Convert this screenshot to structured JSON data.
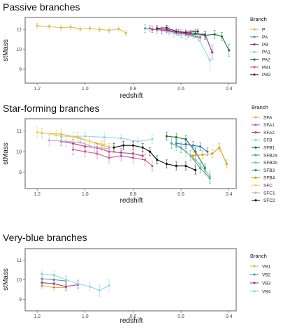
{
  "chart_data": [
    {
      "type": "line",
      "title": "Passive branches",
      "xlabel": "redshift",
      "ylabel": "stMass",
      "x_reversed": true,
      "xlim": [
        1.25,
        0.37
      ],
      "ylim": [
        8.3,
        11.6
      ],
      "xticks": [
        "1.2",
        "1.0",
        "0.8",
        "0.6",
        "0.4"
      ],
      "yticks": [
        "9",
        "10",
        "11"
      ],
      "legend_title": "Branch",
      "legend_position": "right",
      "grid": false,
      "series": [
        {
          "name": "P",
          "color": "#E3B94A",
          "points": [
            [
              1.2,
              11.18
            ],
            [
              1.15,
              11.15
            ],
            [
              1.1,
              11.08
            ],
            [
              1.06,
              11.12
            ],
            [
              1.02,
              11.02
            ],
            [
              0.98,
              11.05
            ],
            [
              0.94,
              11.0
            ],
            [
              0.9,
              10.95
            ],
            [
              0.86,
              11.02
            ],
            [
              0.83,
              10.82
            ]
          ],
          "err": [
            0.12,
            0.12,
            0.12,
            0.12,
            0.12,
            0.12,
            0.12,
            0.12,
            0.12,
            0.12
          ]
        },
        {
          "name": "PA",
          "color": "#4BA597",
          "points": [
            [
              0.75,
              11.05
            ],
            [
              0.7,
              11.0
            ],
            [
              0.65,
              10.95
            ],
            [
              0.6,
              10.8
            ],
            [
              0.55,
              10.75
            ],
            [
              0.5,
              10.7
            ]
          ],
          "err": [
            0.2,
            0.2,
            0.2,
            0.2,
            0.2,
            0.2
          ]
        },
        {
          "name": "PB",
          "color": "#7D3D8F",
          "points": [
            [
              0.72,
              11.0
            ],
            [
              0.66,
              10.98
            ],
            [
              0.61,
              10.85
            ],
            [
              0.56,
              10.8
            ],
            [
              0.5,
              10.75
            ],
            [
              0.47,
              9.85
            ]
          ],
          "err": [
            0.15,
            0.15,
            0.15,
            0.15,
            0.15,
            0.35
          ]
        },
        {
          "name": "PA1",
          "color": "#8FD4E8",
          "points": [
            [
              0.68,
              10.95
            ],
            [
              0.63,
              10.8
            ],
            [
              0.58,
              10.7
            ],
            [
              0.53,
              10.6
            ],
            [
              0.48,
              9.45
            ]
          ],
          "err": [
            0.2,
            0.2,
            0.2,
            0.2,
            0.55
          ]
        },
        {
          "name": "PA2",
          "color": "#1B7436",
          "points": [
            [
              0.54,
              10.8
            ],
            [
              0.5,
              10.7
            ],
            [
              0.46,
              10.75
            ],
            [
              0.43,
              10.65
            ],
            [
              0.4,
              9.95
            ]
          ],
          "err": [
            0.2,
            0.2,
            0.2,
            0.2,
            0.3
          ]
        },
        {
          "name": "PB1",
          "color": "#C85D9B",
          "points": [
            [
              0.73,
              11.05
            ],
            [
              0.68,
              10.95
            ],
            [
              0.62,
              10.85
            ],
            [
              0.57,
              10.75
            ],
            [
              0.52,
              10.6
            ]
          ],
          "err": [
            0.15,
            0.15,
            0.15,
            0.15,
            0.15
          ]
        },
        {
          "name": "PB2",
          "color": "#6D1F3E",
          "points": [
            [
              0.7,
              11.05
            ],
            [
              0.66,
              11.08
            ],
            [
              0.62,
              10.9
            ],
            [
              0.58,
              10.85
            ],
            [
              0.53,
              10.9
            ]
          ],
          "err": [
            0.12,
            0.12,
            0.12,
            0.12,
            0.12
          ]
        }
      ]
    },
    {
      "type": "line",
      "title": "Star-forming branches",
      "xlabel": "redshift",
      "ylabel": "stMass",
      "x_reversed": true,
      "xlim": [
        1.25,
        0.37
      ],
      "ylim": [
        8.2,
        11.6
      ],
      "xticks": [
        "1.2",
        "1.0",
        "0.8",
        "0.6",
        "0.4"
      ],
      "yticks": [
        "9",
        "10",
        "11"
      ],
      "legend_title": "Branch",
      "legend_position": "right",
      "grid": false,
      "series": [
        {
          "name": "SFA",
          "color": "#E3B94A",
          "points": [
            [
              1.18,
              10.9
            ],
            [
              1.1,
              10.85
            ],
            [
              1.03,
              10.7
            ],
            [
              0.98,
              10.5
            ],
            [
              0.93,
              10.3
            ],
            [
              0.88,
              10.2
            ]
          ],
          "err": [
            0.25,
            0.25,
            0.25,
            0.25,
            0.25,
            0.25
          ]
        },
        {
          "name": "SFA1",
          "color": "#C85D9B",
          "points": [
            [
              1.05,
              10.1
            ],
            [
              1.0,
              10.0
            ],
            [
              0.95,
              9.9
            ],
            [
              0.9,
              9.7
            ],
            [
              0.85,
              9.8
            ],
            [
              0.8,
              9.7
            ],
            [
              0.75,
              9.6
            ],
            [
              0.72,
              9.3
            ]
          ],
          "err": [
            0.25,
            0.25,
            0.25,
            0.25,
            0.25,
            0.25,
            0.25,
            0.25
          ]
        },
        {
          "name": "SFA2",
          "color": "#B83E80",
          "points": [
            [
              1.1,
              10.5
            ],
            [
              1.05,
              10.4
            ],
            [
              1.0,
              10.25
            ],
            [
              0.95,
              10.2
            ],
            [
              0.9,
              10.0
            ],
            [
              0.85,
              9.95
            ],
            [
              0.8,
              9.9
            ],
            [
              0.76,
              9.8
            ]
          ],
          "err": [
            0.2,
            0.2,
            0.2,
            0.2,
            0.2,
            0.2,
            0.2,
            0.2
          ]
        },
        {
          "name": "SFB",
          "color": "#8FD4E8",
          "points": [
            [
              1.1,
              10.75
            ],
            [
              1.0,
              10.75
            ],
            [
              0.92,
              10.7
            ],
            [
              0.85,
              10.65
            ],
            [
              0.78,
              10.5
            ],
            [
              0.72,
              10.6
            ]
          ],
          "err": [
            0.2,
            0.2,
            0.2,
            0.2,
            0.2,
            0.2
          ]
        },
        {
          "name": "SFB1",
          "color": "#1B7436",
          "points": [
            [
              0.66,
              10.75
            ],
            [
              0.62,
              10.7
            ],
            [
              0.58,
              10.6
            ],
            [
              0.54,
              10.0
            ],
            [
              0.5,
              9.2
            ]
          ],
          "err": [
            0.2,
            0.2,
            0.2,
            0.2,
            0.2
          ]
        },
        {
          "name": "SFB2a",
          "color": "#4BA597",
          "points": [
            [
              0.64,
              10.4
            ],
            [
              0.6,
              10.2
            ],
            [
              0.56,
              9.8
            ],
            [
              0.52,
              9.2
            ],
            [
              0.48,
              8.7
            ]
          ],
          "err": [
            0.25,
            0.25,
            0.25,
            0.25,
            0.25
          ]
        },
        {
          "name": "SFB2b",
          "color": "#7FBF9E",
          "points": [
            [
              0.62,
              10.3
            ],
            [
              0.58,
              10.0
            ],
            [
              0.54,
              9.6
            ],
            [
              0.5,
              9.1
            ],
            [
              0.48,
              8.8
            ]
          ],
          "err": [
            0.25,
            0.25,
            0.25,
            0.25,
            0.25
          ]
        },
        {
          "name": "SFB3",
          "color": "#2E7DB8",
          "points": [
            [
              0.62,
              10.4
            ],
            [
              0.58,
              10.35
            ],
            [
              0.55,
              10.3
            ],
            [
              0.52,
              10.25
            ],
            [
              0.49,
              10.0
            ]
          ],
          "err": [
            0.2,
            0.2,
            0.2,
            0.2,
            0.2
          ]
        },
        {
          "name": "SFB4",
          "color": "#D4A017",
          "points": [
            [
              0.55,
              9.8
            ],
            [
              0.51,
              9.85
            ],
            [
              0.47,
              9.9
            ],
            [
              0.44,
              10.2
            ],
            [
              0.41,
              9.4
            ]
          ],
          "err": [
            0.2,
            0.2,
            0.2,
            0.2,
            0.2
          ]
        },
        {
          "name": "SFC",
          "color": "#F0D35C",
          "points": [
            [
              1.2,
              10.95
            ],
            [
              1.12,
              10.8
            ],
            [
              1.05,
              10.7
            ],
            [
              0.98,
              10.5
            ],
            [
              0.92,
              10.35
            ]
          ],
          "err": [
            0.25,
            0.25,
            0.25,
            0.25,
            0.25
          ]
        },
        {
          "name": "SFC1",
          "color": "#C9A6D6",
          "points": [
            [
              1.15,
              10.55
            ],
            [
              1.08,
              10.5
            ],
            [
              1.02,
              10.45
            ],
            [
              0.96,
              10.2
            ],
            [
              0.9,
              10.15
            ]
          ],
          "err": [
            0.25,
            0.25,
            0.25,
            0.25,
            0.25
          ]
        },
        {
          "name": "SFC2",
          "color": "#111111",
          "points": [
            [
              0.88,
              10.2
            ],
            [
              0.84,
              10.3
            ],
            [
              0.8,
              10.3
            ],
            [
              0.76,
              10.2
            ],
            [
              0.73,
              10.0
            ],
            [
              0.7,
              9.6
            ],
            [
              0.66,
              9.4
            ],
            [
              0.62,
              9.3
            ],
            [
              0.58,
              9.3
            ],
            [
              0.54,
              9.1
            ]
          ],
          "err": [
            0.2,
            0.2,
            0.2,
            0.2,
            0.2,
            0.2,
            0.2,
            0.2,
            0.2,
            0.2
          ]
        }
      ]
    },
    {
      "type": "line",
      "title": "Very-blue branches",
      "xlabel": "redshift",
      "ylabel": "stMass",
      "x_reversed": true,
      "xlim": [
        1.25,
        0.37
      ],
      "ylim": [
        8.4,
        11.6
      ],
      "xticks": [
        "1.2",
        "1.0",
        "0.8",
        "0.6",
        "0.4"
      ],
      "yticks": [
        "9",
        "10",
        "11"
      ],
      "legend_title": "Branch",
      "legend_position": "right",
      "grid": false,
      "series": [
        {
          "name": "VB1",
          "color": "#E3B94A",
          "points": [
            [
              1.18,
              9.7
            ],
            [
              1.13,
              9.6
            ],
            [
              1.08,
              9.6
            ]
          ],
          "err": [
            0.15,
            0.15,
            0.15
          ]
        },
        {
          "name": "VB2",
          "color": "#4BA597",
          "points": [
            [
              1.18,
              10.05
            ],
            [
              1.13,
              10.0
            ],
            [
              1.08,
              9.95
            ]
          ],
          "err": [
            0.2,
            0.2,
            0.2
          ]
        },
        {
          "name": "VB3",
          "color": "#A23B8F",
          "points": [
            [
              1.18,
              9.85
            ],
            [
              1.13,
              9.8
            ],
            [
              1.08,
              9.65
            ],
            [
              1.03,
              9.75
            ]
          ],
          "err": [
            0.2,
            0.2,
            0.2,
            0.2
          ]
        },
        {
          "name": "VB4",
          "color": "#8FD4E8",
          "points": [
            [
              1.18,
              10.3
            ],
            [
              1.13,
              10.25
            ],
            [
              1.08,
              10.0
            ],
            [
              1.03,
              9.8
            ],
            [
              0.98,
              9.65
            ],
            [
              0.94,
              9.45
            ],
            [
              0.9,
              9.7
            ]
          ],
          "err": [
            0.2,
            0.2,
            0.2,
            0.2,
            0.2,
            0.3,
            0.3
          ]
        }
      ]
    }
  ]
}
